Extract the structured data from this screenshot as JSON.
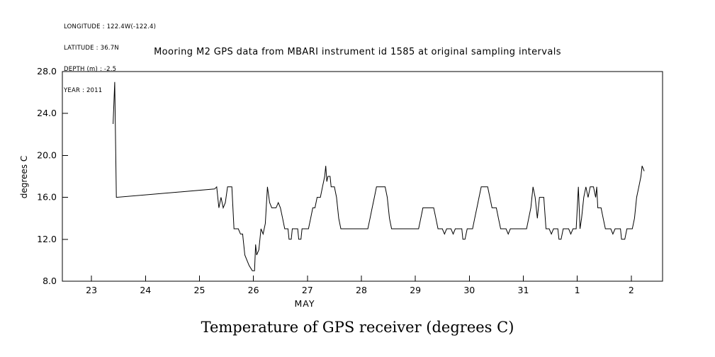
{
  "metadata": {
    "lines": [
      "LONGITUDE : 122.4W(-122.4)",
      "LATITUDE : 36.7N",
      "DEPTH (m) : -2.5",
      "YEAR : 2011"
    ]
  },
  "caption": "Temperature of GPS receiver (degrees C)",
  "chart_data": {
    "type": "line",
    "title": "Mooring M2 GPS data from MBARI instrument id 1585 at original sampling intervals",
    "xlabel": "MAY",
    "ylabel": "degrees C",
    "x_axis_note": "day of month; 32 = Jun 1, 33 = Jun 2",
    "xlim": [
      22.46,
      33.58
    ],
    "ylim": [
      8,
      28
    ],
    "xticks": [
      23,
      24,
      25,
      26,
      27,
      28,
      29,
      30,
      31,
      32,
      33
    ],
    "xtick_labels": [
      "23",
      "24",
      "25",
      "26",
      "27",
      "28",
      "29",
      "30",
      "31",
      "1",
      "2"
    ],
    "yticks": [
      8,
      12,
      16,
      20,
      24,
      28
    ],
    "ytick_labels": [
      "8.0",
      "12.0",
      "16.0",
      "20.0",
      "24.0",
      "28.0"
    ],
    "line_color": "#000000",
    "grid": false,
    "legend": false,
    "series": [
      {
        "name": "GPS receiver temperature (degrees C)",
        "points": [
          [
            23.4,
            23.0
          ],
          [
            23.43,
            27.0
          ],
          [
            23.46,
            16.0
          ],
          [
            25.28,
            16.8
          ],
          [
            25.32,
            17.0
          ],
          [
            25.36,
            15.0
          ],
          [
            25.4,
            16.0
          ],
          [
            25.44,
            15.0
          ],
          [
            25.48,
            15.5
          ],
          [
            25.52,
            17.0
          ],
          [
            25.6,
            17.0
          ],
          [
            25.64,
            13.0
          ],
          [
            25.72,
            13.0
          ],
          [
            25.76,
            12.5
          ],
          [
            25.8,
            12.5
          ],
          [
            25.84,
            10.5
          ],
          [
            25.88,
            10.0
          ],
          [
            25.92,
            9.5
          ],
          [
            25.98,
            9.0
          ],
          [
            26.02,
            9.0
          ],
          [
            26.04,
            11.5
          ],
          [
            26.06,
            10.5
          ],
          [
            26.1,
            11.0
          ],
          [
            26.14,
            13.0
          ],
          [
            26.18,
            12.5
          ],
          [
            26.22,
            13.5
          ],
          [
            26.26,
            17.0
          ],
          [
            26.3,
            15.5
          ],
          [
            26.34,
            15.0
          ],
          [
            26.42,
            15.0
          ],
          [
            26.46,
            15.5
          ],
          [
            26.5,
            15.0
          ],
          [
            26.54,
            14.0
          ],
          [
            26.58,
            13.0
          ],
          [
            26.64,
            13.0
          ],
          [
            26.66,
            12.0
          ],
          [
            26.7,
            12.0
          ],
          [
            26.72,
            13.0
          ],
          [
            26.82,
            13.0
          ],
          [
            26.84,
            12.0
          ],
          [
            26.88,
            12.0
          ],
          [
            26.9,
            13.0
          ],
          [
            27.02,
            13.0
          ],
          [
            27.06,
            14.0
          ],
          [
            27.1,
            15.0
          ],
          [
            27.14,
            15.0
          ],
          [
            27.18,
            16.0
          ],
          [
            27.24,
            16.0
          ],
          [
            27.28,
            17.0
          ],
          [
            27.32,
            18.0
          ],
          [
            27.34,
            19.0
          ],
          [
            27.36,
            17.5
          ],
          [
            27.38,
            18.0
          ],
          [
            27.42,
            18.0
          ],
          [
            27.44,
            17.0
          ],
          [
            27.5,
            17.0
          ],
          [
            27.54,
            16.0
          ],
          [
            27.58,
            14.0
          ],
          [
            27.62,
            13.0
          ],
          [
            27.9,
            13.0
          ],
          [
            28.12,
            13.0
          ],
          [
            28.16,
            14.0
          ],
          [
            28.2,
            15.0
          ],
          [
            28.24,
            16.0
          ],
          [
            28.28,
            17.0
          ],
          [
            28.44,
            17.0
          ],
          [
            28.48,
            16.0
          ],
          [
            28.52,
            14.0
          ],
          [
            28.56,
            13.0
          ],
          [
            29.06,
            13.0
          ],
          [
            29.1,
            14.0
          ],
          [
            29.14,
            15.0
          ],
          [
            29.34,
            15.0
          ],
          [
            29.38,
            14.0
          ],
          [
            29.42,
            13.0
          ],
          [
            29.5,
            13.0
          ],
          [
            29.54,
            12.5
          ],
          [
            29.58,
            13.0
          ],
          [
            29.66,
            13.0
          ],
          [
            29.7,
            12.5
          ],
          [
            29.74,
            13.0
          ],
          [
            29.86,
            13.0
          ],
          [
            29.88,
            12.0
          ],
          [
            29.92,
            12.0
          ],
          [
            29.96,
            13.0
          ],
          [
            30.06,
            13.0
          ],
          [
            30.1,
            14.0
          ],
          [
            30.14,
            15.0
          ],
          [
            30.18,
            16.0
          ],
          [
            30.22,
            17.0
          ],
          [
            30.34,
            17.0
          ],
          [
            30.38,
            16.0
          ],
          [
            30.42,
            15.0
          ],
          [
            30.5,
            15.0
          ],
          [
            30.54,
            14.0
          ],
          [
            30.58,
            13.0
          ],
          [
            30.68,
            13.0
          ],
          [
            30.72,
            12.5
          ],
          [
            30.76,
            13.0
          ],
          [
            30.98,
            13.0
          ],
          [
            31.06,
            13.0
          ],
          [
            31.1,
            14.0
          ],
          [
            31.14,
            15.0
          ],
          [
            31.18,
            17.0
          ],
          [
            31.22,
            16.0
          ],
          [
            31.26,
            14.0
          ],
          [
            31.3,
            16.0
          ],
          [
            31.38,
            16.0
          ],
          [
            31.42,
            13.0
          ],
          [
            31.48,
            13.0
          ],
          [
            31.52,
            12.5
          ],
          [
            31.56,
            13.0
          ],
          [
            31.64,
            13.0
          ],
          [
            31.66,
            12.0
          ],
          [
            31.7,
            12.0
          ],
          [
            31.74,
            13.0
          ],
          [
            31.84,
            13.0
          ],
          [
            31.88,
            12.5
          ],
          [
            31.92,
            13.0
          ],
          [
            31.98,
            13.0
          ],
          [
            32.02,
            17.0
          ],
          [
            32.05,
            13.0
          ],
          [
            32.08,
            14.0
          ],
          [
            32.12,
            16.0
          ],
          [
            32.16,
            17.0
          ],
          [
            32.2,
            16.0
          ],
          [
            32.24,
            17.0
          ],
          [
            32.3,
            17.0
          ],
          [
            32.34,
            16.0
          ],
          [
            32.36,
            17.0
          ],
          [
            32.38,
            15.0
          ],
          [
            32.44,
            15.0
          ],
          [
            32.48,
            14.0
          ],
          [
            32.52,
            13.0
          ],
          [
            32.62,
            13.0
          ],
          [
            32.66,
            12.5
          ],
          [
            32.7,
            13.0
          ],
          [
            32.8,
            13.0
          ],
          [
            32.82,
            12.0
          ],
          [
            32.88,
            12.0
          ],
          [
            32.92,
            13.0
          ],
          [
            33.02,
            13.0
          ],
          [
            33.06,
            14.0
          ],
          [
            33.1,
            16.0
          ],
          [
            33.14,
            17.0
          ],
          [
            33.18,
            18.0
          ],
          [
            33.2,
            19.0
          ],
          [
            33.24,
            18.5
          ]
        ]
      }
    ]
  }
}
